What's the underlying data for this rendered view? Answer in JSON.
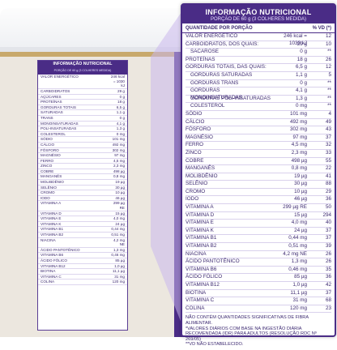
{
  "product": {
    "small_table": {
      "title": "INFORMAÇÃO NUTRICIONAL",
      "serving": "PORÇÃO DE 60 g (3 COLHERES MEDIDA)",
      "rows": [
        [
          "VALOR ENERGÉTICO",
          "246 kcal = 1030 kJ"
        ],
        [
          "CARBOIDRATOS",
          "29 g"
        ],
        [
          "AÇÚCARES",
          "0 g"
        ],
        [
          "PROTEÍNAS",
          "18 g"
        ],
        [
          "GORDURAS TOTAIS",
          "6,5 g"
        ],
        [
          "SATURADAS",
          "1,1 g"
        ],
        [
          "TRANS",
          "0 g"
        ],
        [
          "MONOINSATURADAS",
          "4,1 g"
        ],
        [
          "POLI-INSATURADAS",
          "1,3 g"
        ],
        [
          "COLESTEROL",
          "0 mg"
        ],
        [
          "SÓDIO",
          "101 mg"
        ],
        [
          "CÁLCIO",
          "492 mg"
        ],
        [
          "FÓSFORO",
          "302 mg"
        ],
        [
          "MAGNÉSIO",
          "97 mg"
        ],
        [
          "FERRO",
          "4,5 mg"
        ],
        [
          "ZINCO",
          "2,3 mg"
        ],
        [
          "COBRE",
          "498 µg"
        ],
        [
          "MANGANÊS",
          "0,8 mg"
        ],
        [
          "MOLIBDÊNIO",
          "19 µg"
        ],
        [
          "SELÊNIO",
          "30 µg"
        ],
        [
          "CROMO",
          "10 µg"
        ],
        [
          "IODO",
          "46 µg"
        ],
        [
          "VITAMINA A",
          "299 µg RE"
        ],
        [
          "VITAMINA D",
          "15 µg"
        ],
        [
          "VITAMINA E",
          "4,0 mg"
        ],
        [
          "VITAMINA K",
          "24 µg"
        ],
        [
          "VITAMINA B1",
          "0,44 mg"
        ],
        [
          "VITAMINA B2",
          "0,51 mg"
        ],
        [
          "NIACINA",
          "4,2 mg NE"
        ],
        [
          "ÁCIDO PANTOTÊNICO",
          "1,3 mg"
        ],
        [
          "VITAMINA B6",
          "0,46 mg"
        ],
        [
          "ÁCIDO FÓLICO",
          "85 µg"
        ],
        [
          "VITAMINA B12",
          "1,0 µg"
        ],
        [
          "BIOTINA",
          "11,1 µg"
        ],
        [
          "VITAMINA C",
          "31 mg"
        ],
        [
          "COLINA",
          "120 mg"
        ]
      ]
    }
  },
  "nutrition_table": {
    "title": "INFORMAÇÃO NUTRICIONAL",
    "serving": "PORÇÃO DE 60 g (3 COLHERES MEDIDA)",
    "column_qty": "QUANTIDADE POR PORÇÃO",
    "column_vd": "% VD (*)",
    "rows": [
      {
        "name": "VALOR ENERGÉTICO",
        "amount": "246 kcal = 1030 kJ",
        "vd": "12",
        "sub": false
      },
      {
        "name": "CARBOIDRATOS, DOS QUAIS:",
        "amount": "29 g",
        "vd": "10",
        "sub": false
      },
      {
        "name": "SACAROSE",
        "amount": "0 g",
        "vd": "**",
        "sub": true
      },
      {
        "name": "PROTEÍNAS",
        "amount": "18 g",
        "vd": "26",
        "sub": false
      },
      {
        "name": "GORDURAS TOTAIS, DAS QUAIS:",
        "amount": "6,5 g",
        "vd": "12",
        "sub": false
      },
      {
        "name": "GORDURAS SATURADAS",
        "amount": "1,1 g",
        "vd": "5",
        "sub": true
      },
      {
        "name": "GORDURAS TRANS",
        "amount": "0 g",
        "vd": "**",
        "sub": true
      },
      {
        "name": "GORDURAS MONOINSATURADAS",
        "amount": "4,1 g",
        "vd": "**",
        "sub": true
      },
      {
        "name": "GORDURAS POLI-INSATURADAS",
        "amount": "1,3 g",
        "vd": "**",
        "sub": true
      },
      {
        "name": "COLESTEROL",
        "amount": "0 mg",
        "vd": "**",
        "sub": true
      },
      {
        "name": "SÓDIO",
        "amount": "101 mg",
        "vd": "4",
        "sub": false
      },
      {
        "name": "CÁLCIO",
        "amount": "492 mg",
        "vd": "49",
        "sub": false
      },
      {
        "name": "FÓSFORO",
        "amount": "302 mg",
        "vd": "43",
        "sub": false
      },
      {
        "name": "MAGNÉSIO",
        "amount": "97 mg",
        "vd": "37",
        "sub": false
      },
      {
        "name": "FERRO",
        "amount": "4,5 mg",
        "vd": "32",
        "sub": false
      },
      {
        "name": "ZINCO",
        "amount": "2,3 mg",
        "vd": "33",
        "sub": false
      },
      {
        "name": "COBRE",
        "amount": "498 µg",
        "vd": "55",
        "sub": false
      },
      {
        "name": "MANGANÊS",
        "amount": "0,8 mg",
        "vd": "22",
        "sub": false
      },
      {
        "name": "MOLIBDÊNIO",
        "amount": "19 µg",
        "vd": "41",
        "sub": false
      },
      {
        "name": "SELÊNIO",
        "amount": "30 µg",
        "vd": "88",
        "sub": false
      },
      {
        "name": "CROMO",
        "amount": "10 µg",
        "vd": "29",
        "sub": false
      },
      {
        "name": "IODO",
        "amount": "46 µg",
        "vd": "36",
        "sub": false
      },
      {
        "name": "VITAMINA A",
        "amount": "299 µg RE",
        "vd": "50",
        "sub": false
      },
      {
        "name": "VITAMINA D",
        "amount": "15 µg",
        "vd": "294",
        "sub": false
      },
      {
        "name": "VITAMINA E",
        "amount": "4,0 mg",
        "vd": "40",
        "sub": false
      },
      {
        "name": "VITAMINA K",
        "amount": "24 µg",
        "vd": "37",
        "sub": false
      },
      {
        "name": "VITAMINA B1",
        "amount": "0,44 mg",
        "vd": "37",
        "sub": false
      },
      {
        "name": "VITAMINA B2",
        "amount": "0,51 mg",
        "vd": "39",
        "sub": false
      },
      {
        "name": "NIACINA",
        "amount": "4,2 mg NE",
        "vd": "26",
        "sub": false
      },
      {
        "name": "ÁCIDO PANTOTÊNICO",
        "amount": "1,3 mg",
        "vd": "26",
        "sub": false
      },
      {
        "name": "VITAMINA B6",
        "amount": "0,46 mg",
        "vd": "35",
        "sub": false
      },
      {
        "name": "ÁCIDO FÓLICO",
        "amount": "85 µg",
        "vd": "36",
        "sub": false
      },
      {
        "name": "VITAMINA B12",
        "amount": "1,0 µg",
        "vd": "42",
        "sub": false
      },
      {
        "name": "BIOTINA",
        "amount": "11,1 µg",
        "vd": "37",
        "sub": false
      },
      {
        "name": "VITAMINA C",
        "amount": "31 mg",
        "vd": "68",
        "sub": false
      },
      {
        "name": "COLINA",
        "amount": "120 mg",
        "vd": "23",
        "sub": false
      }
    ],
    "footnotes": [
      "NÃO CONTÉM QUANTIDADES SIGNIFICATIVAS DE FIBRA ALIMENTAR.",
      "*VALORES DIÁRIOS COM BASE NA INGESTÃO DIÁRIA RECOMENDADA (IDR) PARA ADULTOS (RESOLUÇÃO RDC Nº 269/05)",
      "**VD NÃO ESTABELECIDO."
    ]
  },
  "colors": {
    "purple": "#4a2c86",
    "gold": "#c8a96c",
    "cream": "#ece7df"
  }
}
